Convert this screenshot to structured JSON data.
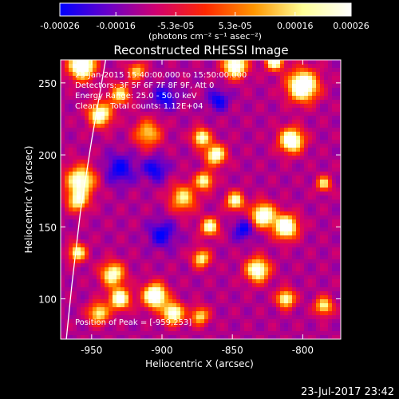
{
  "chart_data": {
    "type": "heatmap",
    "title": "Reconstructed RHESSI Image",
    "xlabel": "Heliocentric X (arcsec)",
    "ylabel": "Heliocentric Y (arcsec)",
    "xlim": [
      -972,
      -773
    ],
    "ylim": [
      72,
      266
    ],
    "x_ticks": [
      -950,
      -900,
      -850,
      -800
    ],
    "x_tick_labels": [
      "-950",
      "-900",
      "-850",
      "-800"
    ],
    "y_ticks": [
      100,
      150,
      200,
      250
    ],
    "y_tick_labels": [
      "100",
      "150",
      "200",
      "250"
    ],
    "colorbar": {
      "range": [
        -0.00026,
        0.00026
      ],
      "ticks": [
        -0.00026,
        -0.00016,
        -5.3e-05,
        5.3e-05,
        0.00016,
        0.00026
      ],
      "tick_labels": [
        "-0.00026",
        "-0.00016",
        "-5.3e-05",
        "5.3e-05",
        "0.00016",
        "0.00026"
      ],
      "unit_label": "(photons cm⁻² s⁻¹ asec⁻²)",
      "colormap": [
        "#0000ff",
        "#6a00c8",
        "#d2006e",
        "#ff2800",
        "#ff9600",
        "#ffff96",
        "#ffffff"
      ]
    },
    "annotations": [
      "23-Jan-2015 15:40:00.000 to 15:50:00.000",
      "Detectors: 3F 5F 6F 7F 8F 9F, Att 0",
      "Energy Range: 25.0 - 50.0 keV",
      "Clean     Total counts: 1.12E+04"
    ],
    "peak_label": "Position of Peak = [-959,253]",
    "limb_curve": [
      [
        -968,
        72
      ],
      [
        -964,
        110
      ],
      [
        -958,
        160
      ],
      [
        -950,
        210
      ],
      [
        -940,
        266
      ]
    ],
    "grid": false
  },
  "footer": {
    "timestamp": "23-Jul-2017 23:42"
  }
}
